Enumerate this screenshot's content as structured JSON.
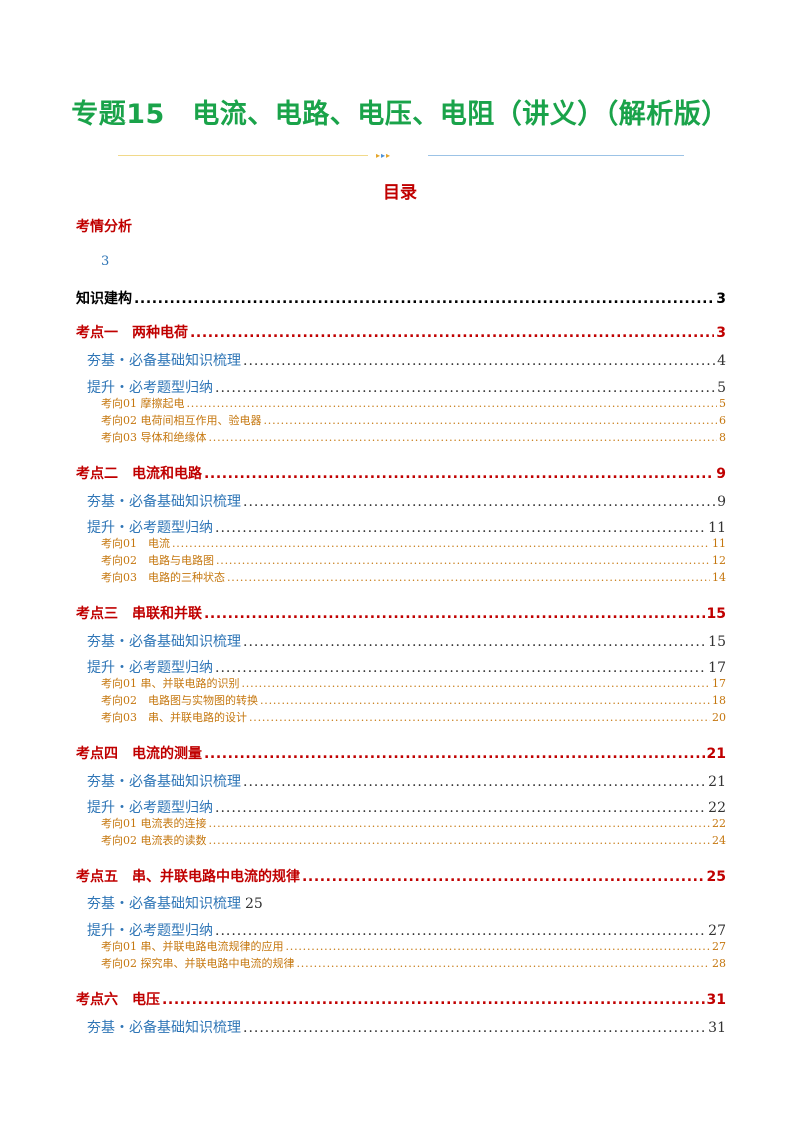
{
  "title": "专题15　电流、电路、电压、电阻（讲义）（解析版）",
  "toc_heading": "目录",
  "analysis": {
    "label": "考情分析",
    "page": "3"
  },
  "knowledge_map": {
    "label": "知识建构",
    "page": "3"
  },
  "sections": [
    {
      "label": "考点一　两种电荷",
      "page": "3",
      "base": {
        "label": "夯基・必备基础知识梳理",
        "page": "4"
      },
      "up": {
        "label": "提升・必考题型归纳",
        "page": "5"
      },
      "items": [
        {
          "label": "考向01 摩擦起电",
          "page": "5"
        },
        {
          "label": "考向02 电荷间相互作用、验电器",
          "page": "6"
        },
        {
          "label": "考向03 导体和绝缘体",
          "page": "8"
        }
      ]
    },
    {
      "label": "考点二　电流和电路",
      "page": "9",
      "base": {
        "label": "夯基・必备基础知识梳理",
        "page": "9"
      },
      "up": {
        "label": "提升・必考题型归纳",
        "page": "11"
      },
      "items": [
        {
          "label": "考向01　电流",
          "page": "11"
        },
        {
          "label": "考向02　电路与电路图",
          "page": "12"
        },
        {
          "label": "考向03　电路的三种状态",
          "page": "14"
        }
      ]
    },
    {
      "label": "考点三　串联和并联",
      "page": "15",
      "base": {
        "label": "夯基・必备基础知识梳理",
        "page": "15"
      },
      "up": {
        "label": "提升・必考题型归纳",
        "page": "17"
      },
      "items": [
        {
          "label": "考向01 串、并联电路的识别",
          "page": "17"
        },
        {
          "label": "考向02　电路图与实物图的转换",
          "page": "18"
        },
        {
          "label": "考向03　串、并联电路的设计",
          "page": "20"
        }
      ]
    },
    {
      "label": "考点四　电流的测量",
      "page": "21",
      "base": {
        "label": "夯基・必备基础知识梳理",
        "page": "21"
      },
      "up": {
        "label": "提升・必考题型归纳",
        "page": "22"
      },
      "items": [
        {
          "label": "考向01 电流表的连接",
          "page": "22"
        },
        {
          "label": "考向02 电流表的读数",
          "page": "24"
        }
      ]
    },
    {
      "label": "考点五　串、并联电路中电流的规律",
      "page": "25",
      "base": {
        "label": "夯基・必备基础知识梳理",
        "page": "25"
      },
      "up": {
        "label": "提升・必考题型归纳",
        "page": "27"
      },
      "items": [
        {
          "label": "考向01 串、并联电路电流规律的应用",
          "page": "27"
        },
        {
          "label": "考向02 探究串、并联电路中电流的规律",
          "page": "28"
        }
      ]
    },
    {
      "label": "考点六　电压",
      "page": "31",
      "base": {
        "label": "夯基・必备基础知识梳理",
        "page": "31"
      }
    }
  ]
}
